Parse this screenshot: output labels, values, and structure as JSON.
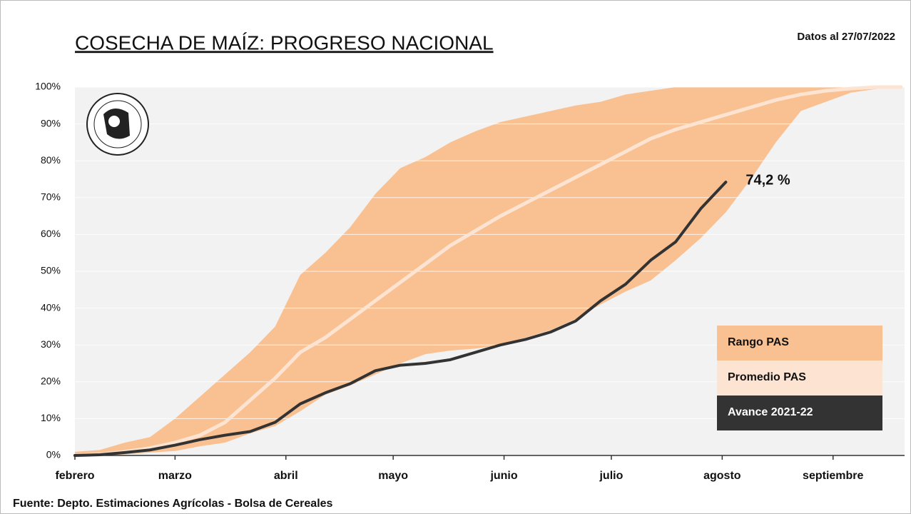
{
  "chart_data": {
    "type": "band-line",
    "title": "COSECHA DE MAÍZ: PROGRESO NACIONAL",
    "subtitle": "Datos al 27/07/2022",
    "source": "Fuente: Depto. Estimaciones Agrícolas - Bolsa de Cereales",
    "x": [
      0,
      7,
      14,
      21,
      28,
      35,
      42,
      49,
      56,
      63,
      70,
      77,
      84,
      91,
      98,
      105,
      112,
      119,
      126,
      133,
      140,
      147,
      154,
      161,
      168,
      175,
      182,
      189,
      196,
      203,
      210,
      217,
      224,
      231
    ],
    "xlim": [
      0,
      232
    ],
    "xticks": [
      {
        "value": 0,
        "label": "febrero"
      },
      {
        "value": 28,
        "label": "marzo"
      },
      {
        "value": 59,
        "label": "abril"
      },
      {
        "value": 89,
        "label": "mayo"
      },
      {
        "value": 120,
        "label": "junio"
      },
      {
        "value": 150,
        "label": "julio"
      },
      {
        "value": 181,
        "label": "agosto"
      },
      {
        "value": 212,
        "label": "septiembre"
      }
    ],
    "ylim": [
      0,
      100
    ],
    "yticks": [
      {
        "value": 0,
        "label": "0%"
      },
      {
        "value": 10,
        "label": "10%"
      },
      {
        "value": 20,
        "label": "20%"
      },
      {
        "value": 30,
        "label": "30%"
      },
      {
        "value": 40,
        "label": "40%"
      },
      {
        "value": 50,
        "label": "50%"
      },
      {
        "value": 60,
        "label": "60%"
      },
      {
        "value": 70,
        "label": "70%"
      },
      {
        "value": 80,
        "label": "80%"
      },
      {
        "value": 90,
        "label": "90%"
      },
      {
        "value": 100,
        "label": "100%"
      }
    ],
    "grid": true,
    "series": [
      {
        "name": "Rango PAS",
        "color": "#f9c192",
        "upper": [
          1,
          1.5,
          3.5,
          5,
          10,
          16,
          22,
          28,
          35,
          49,
          55,
          62,
          71,
          78,
          81,
          85,
          88,
          90.5,
          92,
          93.5,
          95,
          96,
          98,
          99,
          100,
          100,
          100,
          100,
          100,
          100,
          100,
          100,
          100,
          100
        ],
        "lower": [
          0,
          0,
          0.3,
          0.8,
          1.2,
          2.5,
          3.5,
          6,
          8,
          12,
          16.5,
          19,
          22,
          25,
          27.5,
          28.5,
          29,
          30,
          32,
          34,
          37,
          41,
          44.5,
          47.5,
          53,
          59,
          66,
          75,
          85,
          93.5,
          96,
          98.5,
          99.5,
          100
        ]
      },
      {
        "name": "Promedio PAS",
        "color": "#fde4d2",
        "values": [
          0,
          0.3,
          1,
          2,
          3.5,
          5.5,
          9,
          15,
          21,
          28,
          32,
          37,
          42,
          47,
          52,
          57,
          61,
          65,
          68.5,
          72,
          75.5,
          79,
          82.5,
          86,
          88.5,
          90.5,
          92.5,
          94.5,
          96.5,
          98,
          99,
          99.6,
          100,
          100
        ]
      },
      {
        "name": "Avance 2021-22",
        "color": "#333333",
        "values": [
          0,
          0.2,
          0.8,
          1.5,
          2.8,
          4.3,
          5.5,
          6.5,
          9,
          14,
          17,
          19.5,
          23,
          24.5,
          25,
          26,
          28,
          30,
          31.5,
          33.5,
          36.5,
          42,
          46.5,
          53,
          58,
          67,
          74.2,
          null,
          null,
          null,
          null,
          null,
          null,
          null
        ],
        "value_labels": [
          null,
          null,
          null,
          null,
          null,
          null,
          null,
          null,
          null,
          null,
          null,
          null,
          null,
          null,
          null,
          null,
          null,
          null,
          null,
          null,
          null,
          null,
          null,
          null,
          null,
          null,
          "74,2 %",
          null,
          null,
          null,
          null,
          null,
          null,
          null
        ]
      }
    ]
  }
}
